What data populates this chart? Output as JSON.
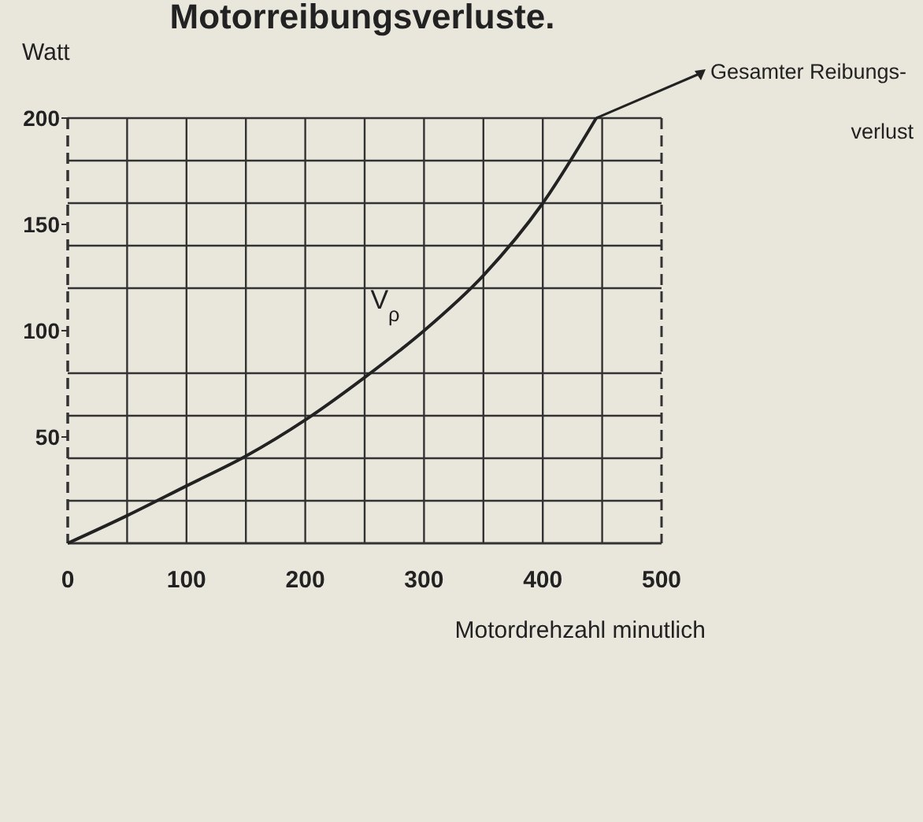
{
  "chart_data": {
    "type": "line",
    "title": "Motorreibungsverluste.",
    "xlabel": "Motordrehzahl  minutlich",
    "ylabel": "Watt",
    "x": [
      0,
      50,
      100,
      150,
      200,
      250,
      300,
      350,
      400,
      445
    ],
    "series": [
      {
        "name": "V$_{ρ}$",
        "color": "#222222",
        "values": [
          0,
          13,
          27,
          41,
          58,
          78,
          100,
          126,
          160,
          200
        ]
      }
    ],
    "xlim": [
      0,
      500
    ],
    "ylim": [
      0,
      200
    ],
    "xticks": [
      0,
      {
        "value": 50,
        "label": null
      },
      100,
      {
        "value": 150,
        "label": null
      },
      200,
      {
        "value": 250,
        "label": null
      },
      300,
      {
        "value": 350,
        "label": null
      },
      400,
      {
        "value": 450,
        "label": null
      },
      500
    ],
    "yticks": [
      {
        "value": 20,
        "label": null
      },
      {
        "value": 40,
        "label": null
      },
      50,
      {
        "value": 60,
        "label": null
      },
      {
        "value": 80,
        "label": null
      },
      100,
      {
        "value": 120,
        "label": null
      },
      {
        "value": 140,
        "label": null
      },
      150,
      {
        "value": 160,
        "label": null
      },
      {
        "value": 180,
        "label": null
      },
      200
    ],
    "grid": true,
    "line_style": "solid",
    "marker": "none",
    "annotations": [
      "Gesamter Reibungs-\nverlust"
    ]
  }
}
